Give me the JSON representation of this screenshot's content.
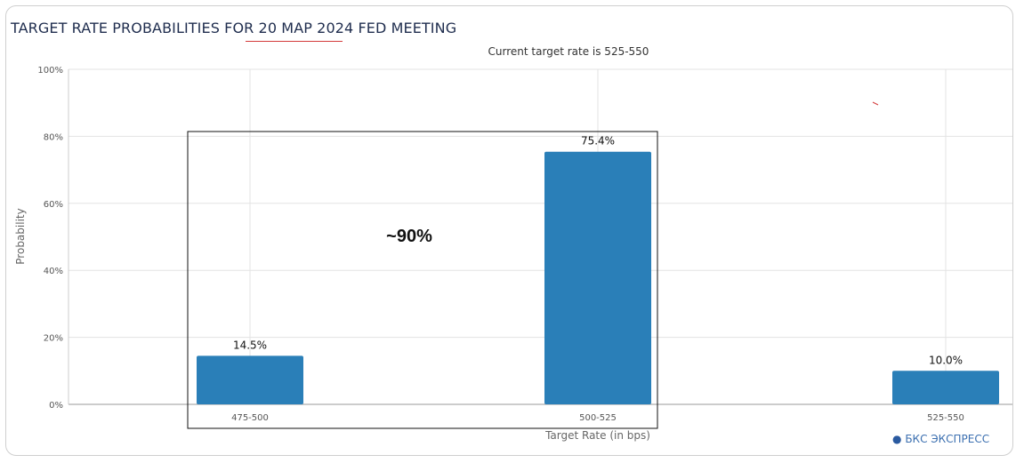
{
  "page": {
    "watermark": "БКС ЭКСПРЕСС",
    "accent_color": "#d43a3a"
  },
  "chart_data": {
    "type": "bar",
    "title": "TARGET RATE PROBABILITIES FOR 20 МАР 2024 FED MEETING",
    "subtitle": "Current target rate is 525-550",
    "xlabel": "Target Rate (in bps)",
    "ylabel": "Probability",
    "categories": [
      "475-500",
      "500-525",
      "525-550"
    ],
    "values": [
      14.5,
      75.4,
      10.0
    ],
    "data_labels": [
      "14.5%",
      "75.4%",
      "10.0%"
    ],
    "ylim": [
      0,
      100
    ],
    "y_ticks": [
      0,
      20,
      40,
      60,
      80,
      100
    ],
    "y_tick_labels": [
      "0%",
      "20%",
      "40%",
      "60%",
      "80%",
      "100%"
    ],
    "bar_color": "#2a7fb8",
    "grid": true,
    "annotation": {
      "text": "~90%",
      "covers_categories": [
        "475-500",
        "500-525"
      ]
    }
  }
}
